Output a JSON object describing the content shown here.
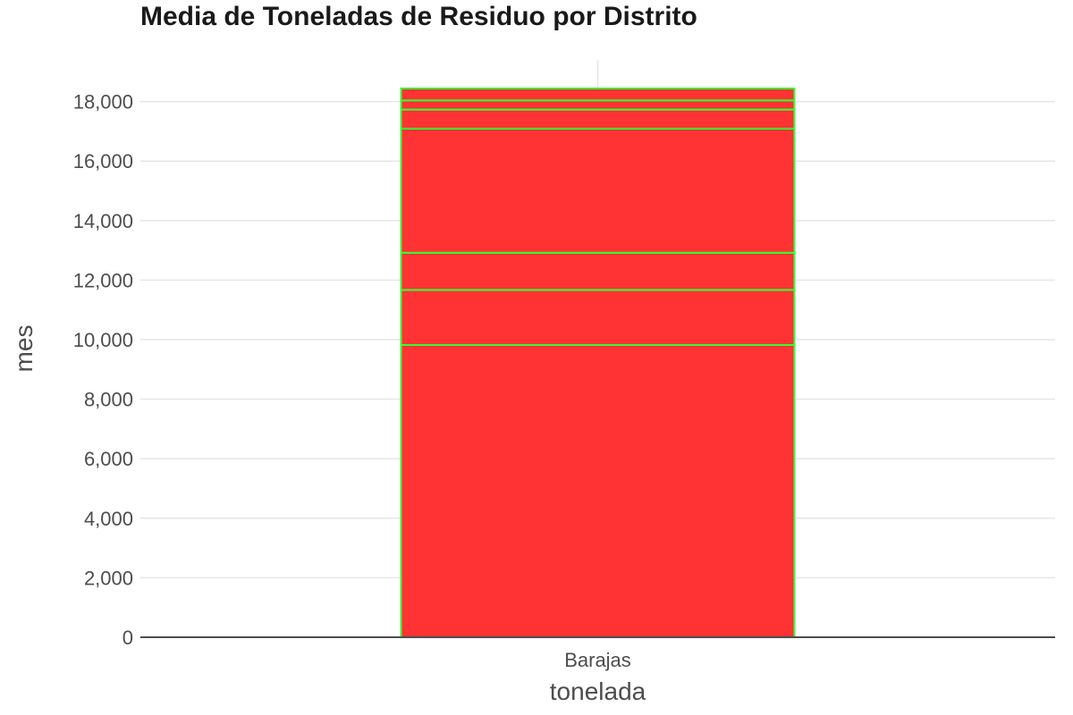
{
  "chart_data": {
    "type": "bar",
    "stacked": true,
    "title": "Media de Toneladas de Residuo por Distrito",
    "xlabel": "tonelada",
    "ylabel": "mes",
    "categories": [
      "Barajas"
    ],
    "segments": [
      9820,
      1850,
      1250,
      4170,
      640,
      310,
      400
    ],
    "total": 18440,
    "ylim": [
      0,
      19400
    ],
    "yticks": [
      0,
      2000,
      4000,
      6000,
      8000,
      10000,
      12000,
      14000,
      16000,
      18000
    ],
    "ytick_labels": [
      "0",
      "2,000",
      "4,000",
      "6,000",
      "8,000",
      "10,000",
      "12,000",
      "14,000",
      "16,000",
      "18,000"
    ],
    "grid": true,
    "colors": {
      "bar_fill": "#ff3333",
      "bar_outline": "#33ff33",
      "grid": "#e6e6e6",
      "axis": "#4d4d4d",
      "title": "#1a1a1a"
    }
  }
}
